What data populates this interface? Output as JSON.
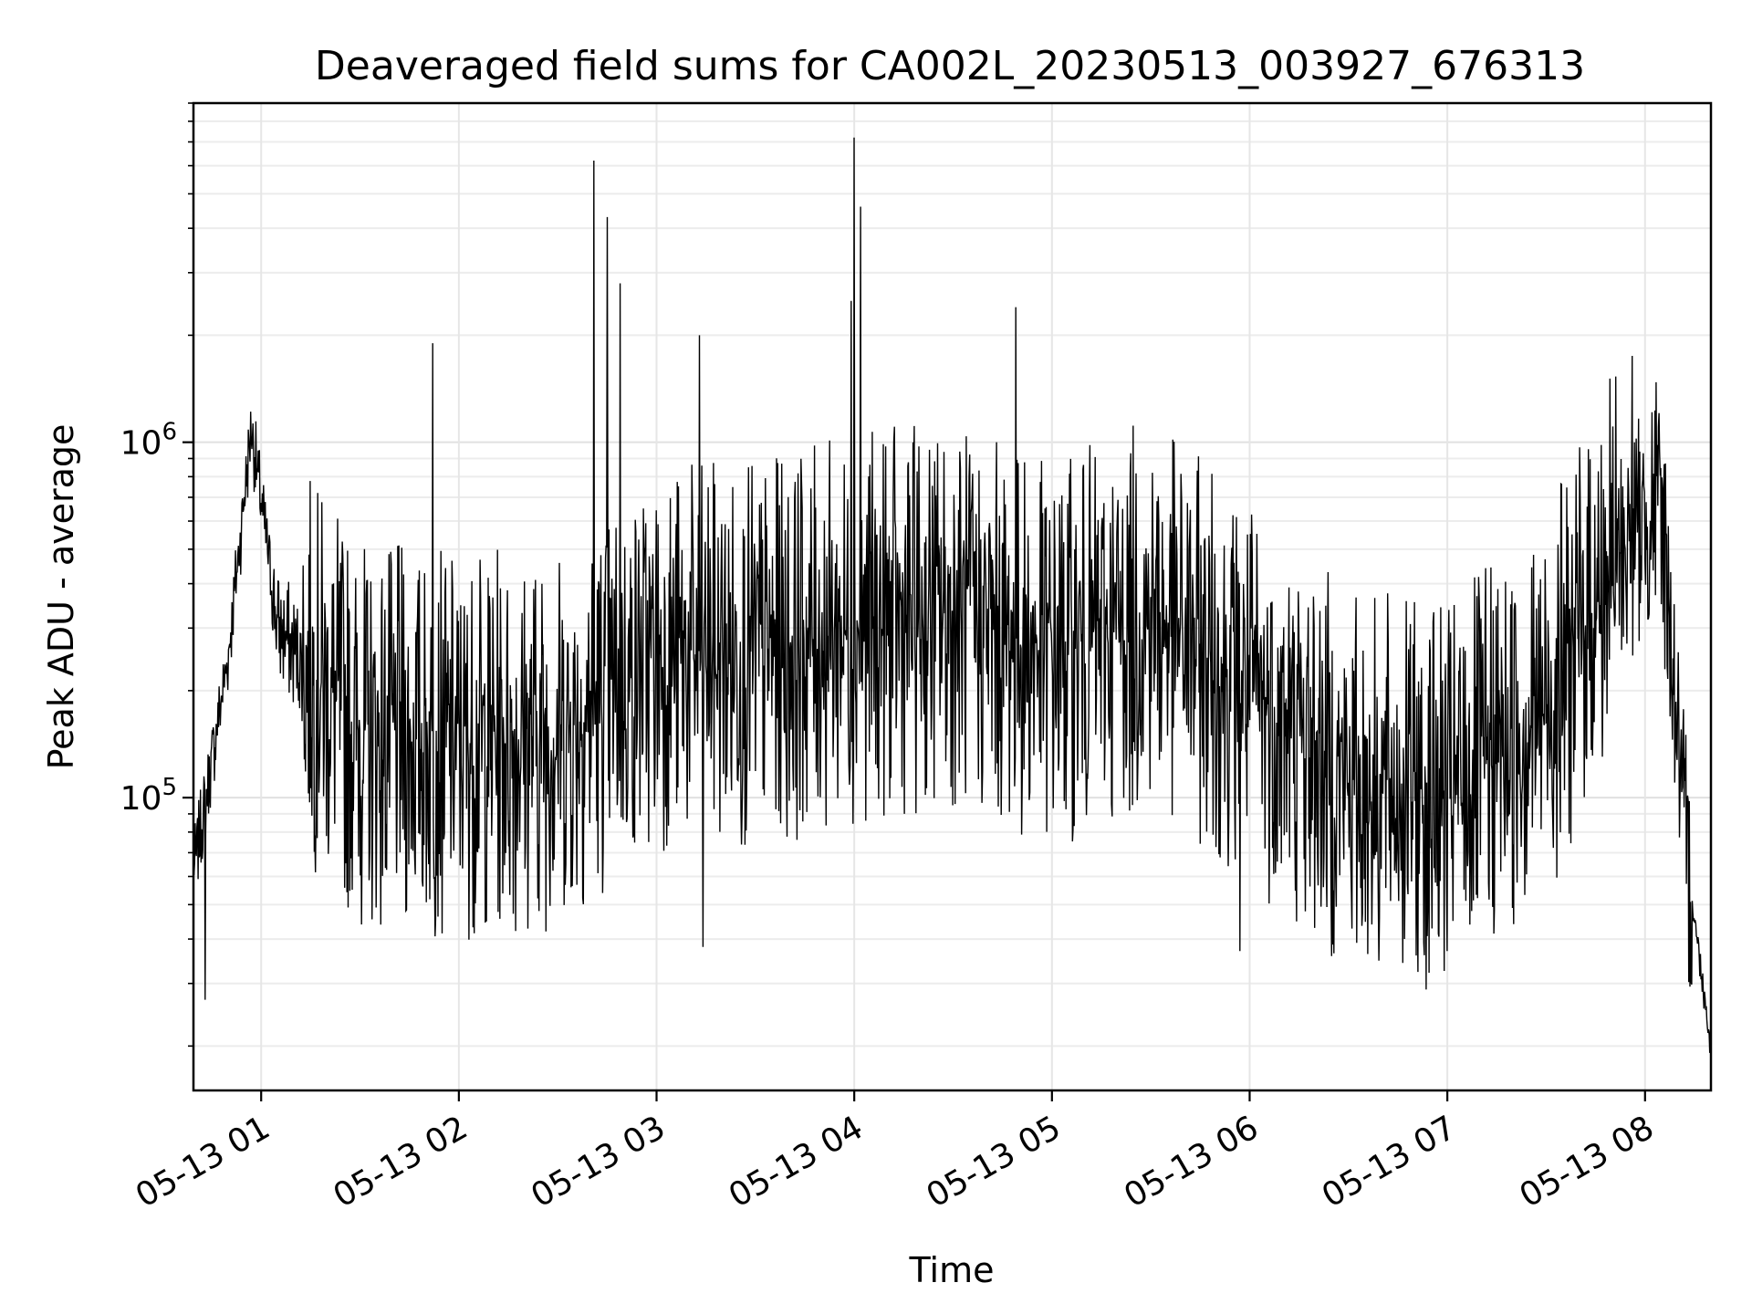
{
  "chart_data": {
    "type": "line",
    "title": "Deaveraged field sums for CA002L_20230513_003927_676313",
    "xlabel": "Time",
    "ylabel": "Peak ADU - average",
    "x_axis": {
      "kind": "datetime",
      "range": [
        "2023-05-13T00:39:27",
        "2023-05-13T08:20:00"
      ],
      "ticks": [
        {
          "value": "2023-05-13T01:00:00",
          "label": "05-13 01"
        },
        {
          "value": "2023-05-13T02:00:00",
          "label": "05-13 02"
        },
        {
          "value": "2023-05-13T03:00:00",
          "label": "05-13 03"
        },
        {
          "value": "2023-05-13T04:00:00",
          "label": "05-13 04"
        },
        {
          "value": "2023-05-13T05:00:00",
          "label": "05-13 05"
        },
        {
          "value": "2023-05-13T06:00:00",
          "label": "05-13 06"
        },
        {
          "value": "2023-05-13T07:00:00",
          "label": "05-13 07"
        },
        {
          "value": "2023-05-13T08:00:00",
          "label": "05-13 08"
        }
      ],
      "tick_label_rotation_deg": 30
    },
    "y_axis": {
      "scale": "log",
      "range": [
        15000,
        9000000
      ],
      "major_ticks": [
        {
          "value": 100000,
          "base": "10",
          "exp": "5"
        },
        {
          "value": 1000000,
          "base": "10",
          "exp": "6"
        }
      ]
    },
    "grid": true,
    "legend": "none",
    "colors": {
      "line": "#000000",
      "grid": "#e6e6e6",
      "axes": "#000000"
    },
    "series": [
      {
        "envelope_hourly": [
          {
            "x": "2023-05-13T00:40:00",
            "y": 65000
          },
          {
            "x": "2023-05-13T00:50:00",
            "y": 250000
          },
          {
            "x": "2023-05-13T00:57:00",
            "y": 1100000
          },
          {
            "x": "2023-05-13T01:05:00",
            "y": 300000
          },
          {
            "x": "2023-05-13T01:30:00",
            "y": 150000
          },
          {
            "x": "2023-05-13T02:00:00",
            "y": 140000
          },
          {
            "x": "2023-05-13T02:30:00",
            "y": 150000
          },
          {
            "x": "2023-05-13T03:00:00",
            "y": 250000
          },
          {
            "x": "2023-05-13T03:30:00",
            "y": 250000
          },
          {
            "x": "2023-05-13T04:00:00",
            "y": 300000
          },
          {
            "x": "2023-05-13T04:30:00",
            "y": 330000
          },
          {
            "x": "2023-05-13T05:00:00",
            "y": 250000
          },
          {
            "x": "2023-05-13T05:30:00",
            "y": 330000
          },
          {
            "x": "2023-05-13T06:00:00",
            "y": 200000
          },
          {
            "x": "2023-05-13T06:30:00",
            "y": 110000
          },
          {
            "x": "2023-05-13T07:00:00",
            "y": 100000
          },
          {
            "x": "2023-05-13T07:30:00",
            "y": 180000
          },
          {
            "x": "2023-05-13T07:50:00",
            "y": 450000
          },
          {
            "x": "2023-05-13T08:05:00",
            "y": 700000
          },
          {
            "x": "2023-05-13T08:12:00",
            "y": 75000
          },
          {
            "x": "2023-05-13T08:20:00",
            "y": 20000
          }
        ],
        "notable_peaks": [
          {
            "x": "2023-05-13T02:41:00",
            "y": 6200000
          },
          {
            "x": "2023-05-13T02:45:00",
            "y": 4300000
          },
          {
            "x": "2023-05-13T02:49:00",
            "y": 2800000
          },
          {
            "x": "2023-05-13T03:59:00",
            "y": 2500000
          },
          {
            "x": "2023-05-13T04:00:00",
            "y": 7200000
          },
          {
            "x": "2023-05-13T04:02:00",
            "y": 4600000
          },
          {
            "x": "2023-05-13T01:52:00",
            "y": 1900000
          },
          {
            "x": "2023-05-13T03:13:00",
            "y": 2000000
          },
          {
            "x": "2023-05-13T04:49:00",
            "y": 2400000
          },
          {
            "x": "2023-05-13T07:56:00",
            "y": 1750000
          }
        ],
        "notable_troughs": [
          {
            "x": "2023-05-13T00:43:00",
            "y": 27000
          },
          {
            "x": "2023-05-13T03:14:00",
            "y": 38000
          },
          {
            "x": "2023-05-13T05:57:00",
            "y": 37000
          },
          {
            "x": "2023-05-13T06:53:00",
            "y": 36000
          },
          {
            "x": "2023-05-13T07:00:00",
            "y": 37000
          }
        ]
      }
    ]
  }
}
